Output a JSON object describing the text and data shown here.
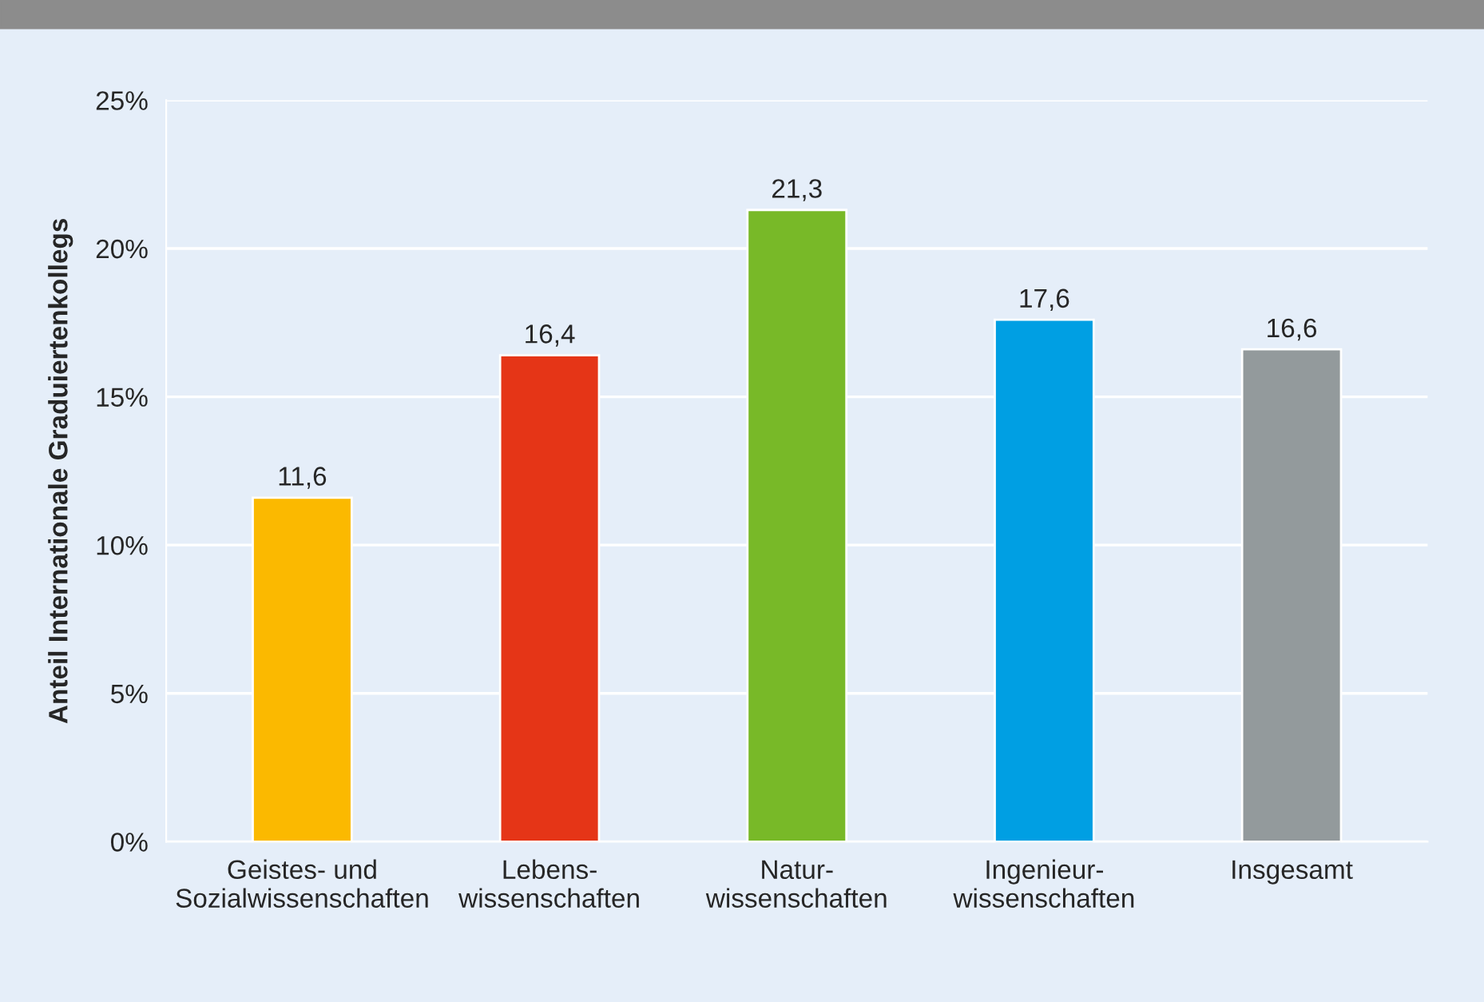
{
  "chart_data": {
    "type": "bar",
    "ylabel": "Anteil Internationale Graduiertenkollegs",
    "categories": [
      "Geistes- und\nSozialwissenschaften",
      "Lebens-\nwissenschaften",
      "Natur-\nwissenschaften",
      "Ingenieur-\nwissenschaften",
      "Insgesamt"
    ],
    "values": [
      11.6,
      16.4,
      21.3,
      17.6,
      16.6
    ],
    "colors": [
      "#fbb900",
      "#e53517",
      "#78b928",
      "#009fe3",
      "#939a9c"
    ],
    "value_labels": [
      "11,6",
      "16,4",
      "21,3",
      "17,6",
      "16,6"
    ],
    "ylim": [
      0,
      25
    ],
    "yticks": [
      {
        "value": 0,
        "label": "0%"
      },
      {
        "value": 5,
        "label": "5%"
      },
      {
        "value": 10,
        "label": "10%"
      },
      {
        "value": 15,
        "label": "15%"
      },
      {
        "value": 20,
        "label": "20%"
      },
      {
        "value": 25,
        "label": "25%"
      }
    ],
    "grid": "y"
  }
}
